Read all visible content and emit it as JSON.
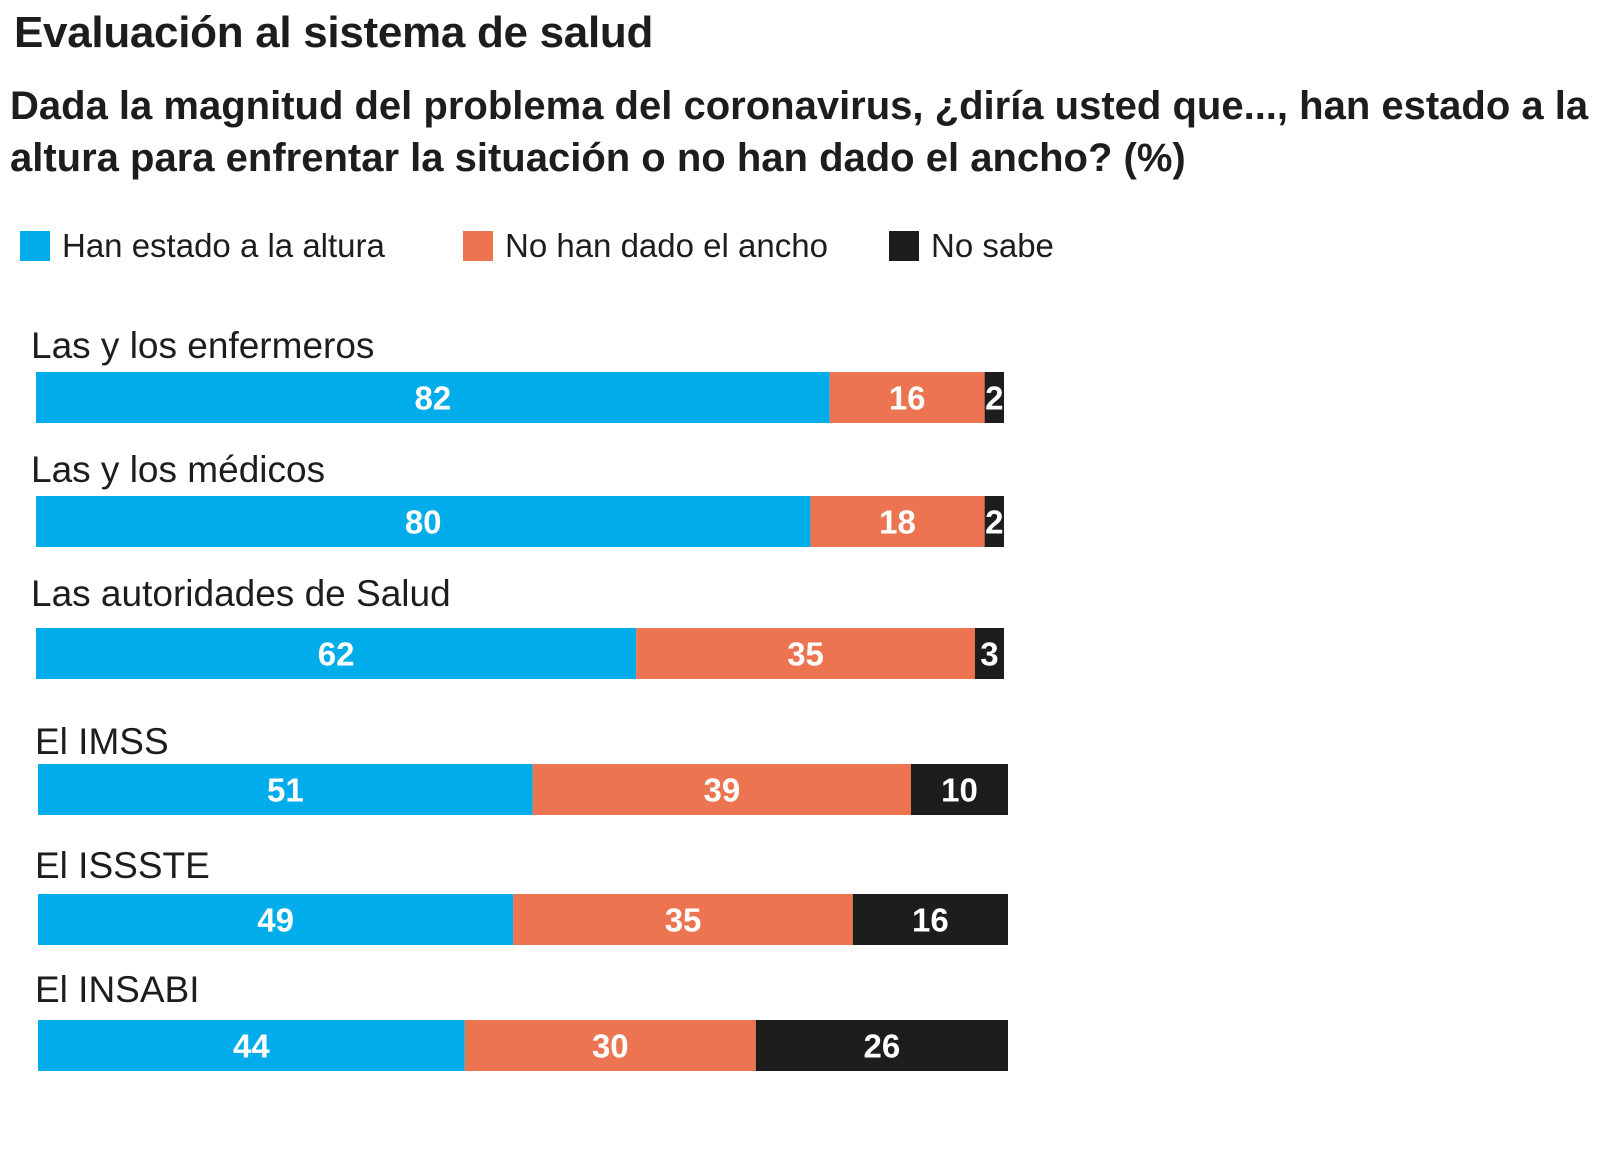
{
  "title": "Evaluación al sistema de salud",
  "subtitle": "Dada la magnitud del problema del coronavirus, ¿diría usted que..., han estado a la altura para enfrentar la situación o no han dado el ancho?  (%)",
  "colors": {
    "altura": "#00adea",
    "ancho": "#ec7450",
    "nosabe": "#1d1d1b"
  },
  "legend": [
    {
      "label": "Han estado a la altura",
      "color": "#00adea"
    },
    {
      "label": "No han dado el ancho",
      "color": "#ec7450"
    },
    {
      "label": "No sabe",
      "color": "#1d1d1b"
    }
  ],
  "chart_data": {
    "type": "bar",
    "orientation": "horizontal",
    "stacked": true,
    "title": "Evaluación al sistema de salud",
    "categories": [
      "Las y los enfermeros",
      "Las y los médicos",
      "Las autoridades de Salud",
      "El IMSS",
      "El ISSSTE",
      "El INSABI"
    ],
    "series": [
      {
        "name": "Han estado a la altura",
        "values": [
          82,
          80,
          62,
          51,
          49,
          44
        ],
        "color": "#00adea"
      },
      {
        "name": "No han dado el ancho",
        "values": [
          16,
          18,
          35,
          39,
          35,
          30
        ],
        "color": "#ec7450"
      },
      {
        "name": "No sabe",
        "values": [
          2,
          2,
          3,
          10,
          16,
          26
        ],
        "color": "#1d1d1b"
      }
    ],
    "xlim": [
      0,
      100
    ],
    "grid": false,
    "legend_position": "top-left"
  }
}
